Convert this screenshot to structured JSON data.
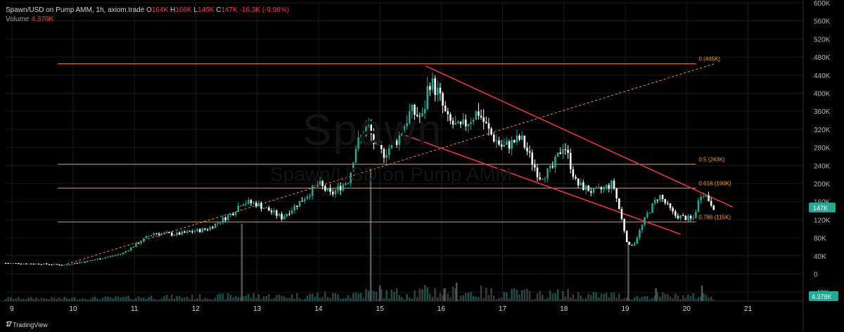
{
  "header": {
    "line1": "Spawn/USD on Pump AMM, 1h, axiom.trade",
    "o_label": "O",
    "o_value": "164K",
    "h_label": "H",
    "h_value": "166K",
    "l_label": "L",
    "l_value": "146K",
    "c_label": "C",
    "c_value": "147K",
    "change": "-16.3K (-9.98%)",
    "volume_label": "Volume",
    "volume_value": "4.378K"
  },
  "watermark": {
    "symbol": "Spawn",
    "pair": "Spawn/USD on Pump AMM"
  },
  "brand": {
    "label": "TradingView",
    "icon": "tradingview-logo"
  },
  "colors": {
    "up": "#22ab94",
    "down": "#ffffff",
    "fib": "#ff9800",
    "channel": "#f23645",
    "badge": "#22ab94",
    "grid": "#1a1a1a"
  },
  "chart_data": {
    "type": "candlestick",
    "title": "Spawn/USD on Pump AMM, 1h",
    "y_axis": {
      "range": [
        -60,
        600
      ],
      "unit": "K",
      "tick_labels": [
        "-40K",
        "0",
        "40K",
        "80K",
        "120K",
        "160K",
        "200K",
        "240K",
        "280K",
        "320K",
        "360K",
        "400K",
        "440K",
        "480K",
        "520K",
        "560K",
        "600K"
      ],
      "tick_values": [
        -40,
        0,
        40,
        80,
        120,
        160,
        200,
        240,
        280,
        320,
        360,
        400,
        440,
        480,
        520,
        560,
        600
      ]
    },
    "x_axis": {
      "range": [
        8.9,
        21.9
      ],
      "tick_labels": [
        "9",
        "10",
        "11",
        "12",
        "13",
        "14",
        "15",
        "16",
        "17",
        "18",
        "19",
        "20",
        "21"
      ],
      "tick_values": [
        9,
        10,
        11,
        12,
        13,
        14,
        15,
        16,
        17,
        18,
        19,
        20,
        21
      ]
    },
    "price_path": [
      {
        "x": 8.9,
        "y": 24
      },
      {
        "x": 9.5,
        "y": 22
      },
      {
        "x": 9.85,
        "y": 20
      },
      {
        "x": 10.3,
        "y": 30
      },
      {
        "x": 10.8,
        "y": 45
      },
      {
        "x": 11.3,
        "y": 90
      },
      {
        "x": 11.7,
        "y": 88
      },
      {
        "x": 12.2,
        "y": 100
      },
      {
        "x": 12.6,
        "y": 135
      },
      {
        "x": 12.75,
        "y": 160
      },
      {
        "x": 13.0,
        "y": 155
      },
      {
        "x": 13.4,
        "y": 125
      },
      {
        "x": 13.7,
        "y": 160
      },
      {
        "x": 14.0,
        "y": 200
      },
      {
        "x": 14.2,
        "y": 175
      },
      {
        "x": 14.5,
        "y": 210
      },
      {
        "x": 14.6,
        "y": 280
      },
      {
        "x": 14.8,
        "y": 330
      },
      {
        "x": 14.9,
        "y": 290
      },
      {
        "x": 15.05,
        "y": 265
      },
      {
        "x": 15.3,
        "y": 300
      },
      {
        "x": 15.5,
        "y": 360
      },
      {
        "x": 15.7,
        "y": 345
      },
      {
        "x": 15.8,
        "y": 430
      },
      {
        "x": 15.95,
        "y": 400
      },
      {
        "x": 16.1,
        "y": 340
      },
      {
        "x": 16.3,
        "y": 320
      },
      {
        "x": 16.6,
        "y": 360
      },
      {
        "x": 16.8,
        "y": 310
      },
      {
        "x": 17.0,
        "y": 280
      },
      {
        "x": 17.3,
        "y": 300
      },
      {
        "x": 17.6,
        "y": 215
      },
      {
        "x": 17.8,
        "y": 230
      },
      {
        "x": 18.0,
        "y": 290
      },
      {
        "x": 18.2,
        "y": 200
      },
      {
        "x": 18.5,
        "y": 180
      },
      {
        "x": 18.8,
        "y": 200
      },
      {
        "x": 19.05,
        "y": 60
      },
      {
        "x": 19.15,
        "y": 70
      },
      {
        "x": 19.35,
        "y": 130
      },
      {
        "x": 19.55,
        "y": 175
      },
      {
        "x": 19.8,
        "y": 130
      },
      {
        "x": 20.1,
        "y": 120
      },
      {
        "x": 20.25,
        "y": 185
      },
      {
        "x": 20.45,
        "y": 147
      }
    ],
    "volume_spikes": [
      {
        "x": 12.75,
        "v": 110
      },
      {
        "x": 14.85,
        "v": 190
      },
      {
        "x": 19.05,
        "v": 85
      },
      {
        "x": 15.0,
        "v": 22
      },
      {
        "x": 16.05,
        "v": 18
      },
      {
        "x": 16.25,
        "v": 26
      },
      {
        "x": 19.5,
        "v": 18
      },
      {
        "x": 20.25,
        "v": 22
      }
    ],
    "fib_levels": [
      {
        "label": "0 (465K)",
        "value": 465
      },
      {
        "label": "0.5 (243K)",
        "value": 243
      },
      {
        "label": "0.618 (190K)",
        "value": 190
      },
      {
        "label": "0.786 (115K)",
        "value": 115
      }
    ],
    "trend_line": {
      "from": {
        "x": 9.9,
        "y": 22
      },
      "to": {
        "x": 20.45,
        "y": 465
      }
    },
    "channel_upper": {
      "from": {
        "x": 15.75,
        "y": 460
      },
      "to": {
        "x": 20.75,
        "y": 148
      }
    },
    "channel_lower": {
      "from": {
        "x": 15.35,
        "y": 310
      },
      "to": {
        "x": 19.9,
        "y": 88
      }
    },
    "last_price": {
      "label": "147K",
      "value": 147
    },
    "last_volume": {
      "label": "4.378K"
    }
  }
}
